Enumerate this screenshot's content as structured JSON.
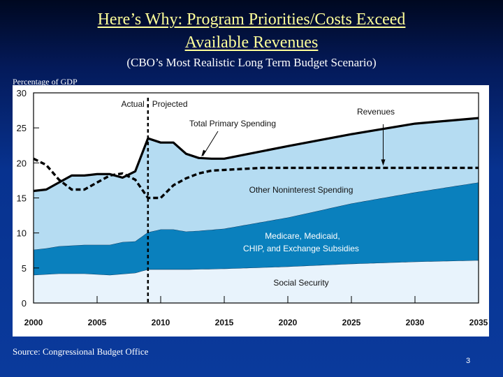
{
  "slide": {
    "title_line1": "Here’s Why: Program Priorities/Costs Exceed",
    "title_line2": "Available Revenues",
    "subtitle": "(CBO’s Most Realistic Long Term Budget Scenario)",
    "y_axis_caption": "Percentage of GDP",
    "source": "Source: Congressional Budget Office",
    "page_number": "3"
  },
  "colors": {
    "social_security": "#e8f3fc",
    "health": "#0a80bd",
    "other": "#b5dcf2",
    "line": "#000000"
  },
  "chart_data": {
    "type": "area",
    "title": "",
    "xlabel": "",
    "ylabel": "Percentage of GDP",
    "xlim": [
      2000,
      2035
    ],
    "ylim": [
      0,
      30
    ],
    "yticks": [
      0,
      5,
      10,
      15,
      20,
      25,
      30
    ],
    "xticks": [
      2000,
      2005,
      2010,
      2015,
      2020,
      2025,
      2030,
      2035
    ],
    "actual_projected_divider_year": 2009,
    "divider_labels": {
      "left": "Actual",
      "right": "Projected"
    },
    "grid": false,
    "stacked_areas": [
      {
        "name": "Social Security",
        "x": [
          2000,
          2002,
          2004,
          2006,
          2008,
          2009,
          2010,
          2012,
          2015,
          2020,
          2025,
          2030,
          2035
        ],
        "top": [
          4.0,
          4.2,
          4.2,
          4.0,
          4.3,
          4.8,
          4.8,
          4.8,
          4.9,
          5.2,
          5.6,
          5.9,
          6.1
        ]
      },
      {
        "name": "Medicare, Medicaid, CHIP, and Exchange Subsidies",
        "x": [
          2000,
          2001,
          2002,
          2004,
          2006,
          2007,
          2008,
          2009,
          2010,
          2011,
          2012,
          2013,
          2015,
          2020,
          2025,
          2030,
          2035
        ],
        "top": [
          7.6,
          7.8,
          8.1,
          8.3,
          8.3,
          8.7,
          8.8,
          10.1,
          10.5,
          10.5,
          10.2,
          10.3,
          10.6,
          12.2,
          14.2,
          15.8,
          17.2
        ]
      },
      {
        "name": "Other Noninterest Spending",
        "x": [
          2000,
          2001,
          2002,
          2003,
          2004,
          2005,
          2006,
          2007,
          2008,
          2009,
          2010,
          2011,
          2012,
          2013,
          2014,
          2015,
          2020,
          2025,
          2030,
          2035
        ],
        "top": [
          16.0,
          16.2,
          17.2,
          18.2,
          18.2,
          18.4,
          18.4,
          17.9,
          18.8,
          23.5,
          22.9,
          22.9,
          21.3,
          20.7,
          20.6,
          20.6,
          22.4,
          24.1,
          25.6,
          26.4
        ]
      }
    ],
    "series": [
      {
        "name": "Total Primary Spending",
        "style": "solid",
        "x": [
          2000,
          2001,
          2002,
          2003,
          2004,
          2005,
          2006,
          2007,
          2008,
          2009,
          2010,
          2011,
          2012,
          2013,
          2014,
          2015,
          2020,
          2025,
          2030,
          2035
        ],
        "values": [
          16.0,
          16.2,
          17.2,
          18.2,
          18.2,
          18.4,
          18.4,
          17.9,
          18.8,
          23.5,
          22.9,
          22.9,
          21.3,
          20.7,
          20.6,
          20.6,
          22.4,
          24.1,
          25.6,
          26.4
        ]
      },
      {
        "name": "Revenues",
        "style": "dashed",
        "x": [
          2000,
          2001,
          2002,
          2003,
          2004,
          2005,
          2006,
          2007,
          2008,
          2009,
          2010,
          2011,
          2012,
          2013,
          2014,
          2015,
          2018,
          2020,
          2025,
          2030,
          2035
        ],
        "values": [
          20.6,
          19.7,
          17.6,
          16.2,
          16.2,
          17.2,
          18.2,
          18.5,
          17.6,
          15.0,
          15.0,
          16.8,
          17.8,
          18.5,
          18.9,
          19.0,
          19.3,
          19.3,
          19.3,
          19.3,
          19.3
        ]
      }
    ],
    "annotations": [
      {
        "text": "Total Primary Spending",
        "points_to": "Total Primary Spending",
        "at_year": 2013.3
      },
      {
        "text": "Revenues",
        "points_to": "Revenues",
        "at_year": 2027.5
      },
      {
        "text": "Other Noninterest Spending",
        "area": "Other Noninterest Spending"
      },
      {
        "text": "Medicare, Medicaid,",
        "area": "Medicare, Medicaid, CHIP, and Exchange Subsidies"
      },
      {
        "text": "CHIP, and Exchange Subsidies",
        "area": "Medicare, Medicaid, CHIP, and Exchange Subsidies"
      },
      {
        "text": "Social Security",
        "area": "Social Security"
      }
    ]
  }
}
